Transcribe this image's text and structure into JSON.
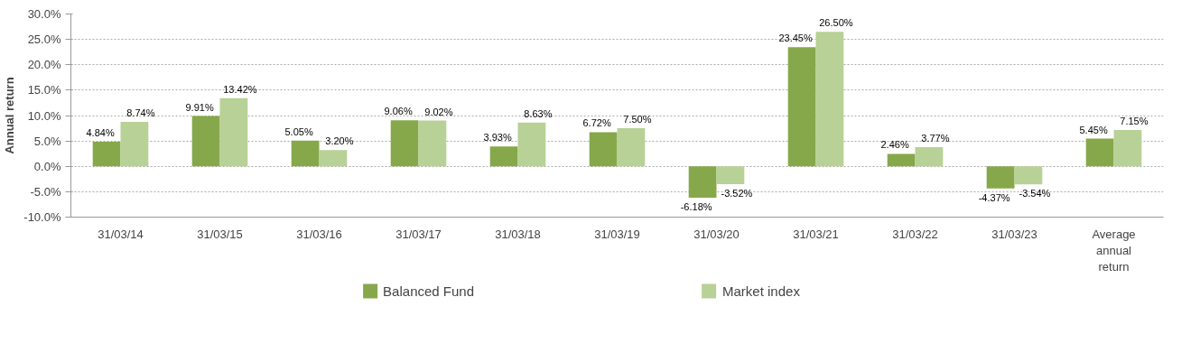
{
  "chart_data": {
    "type": "bar",
    "ylabel": "Annual return",
    "categories": [
      "31/03/14",
      "31/03/15",
      "31/03/16",
      "31/03/17",
      "31/03/18",
      "31/03/19",
      "31/03/20",
      "31/03/21",
      "31/03/22",
      "31/03/23",
      "Average\nannual\nreturn"
    ],
    "series": [
      {
        "name": "Balanced Fund",
        "color": "#86a84a",
        "values": [
          4.84,
          9.91,
          5.05,
          9.06,
          3.93,
          6.72,
          -6.18,
          23.45,
          2.46,
          -4.37,
          5.45
        ],
        "value_labels": [
          "4.84%",
          "9.91%",
          "5.05%",
          "9.06%",
          "3.93%",
          "6.72%",
          "-6.18%",
          "23.45%",
          "2.46%",
          "-4.37%",
          "5.45%"
        ]
      },
      {
        "name": "Market index",
        "color": "#b8d196",
        "values": [
          8.74,
          13.42,
          3.2,
          9.02,
          8.63,
          7.5,
          -3.52,
          26.5,
          3.77,
          -3.54,
          7.15
        ],
        "value_labels": [
          "8.74%",
          "13.42%",
          "3.20%",
          "9.02%",
          "8.63%",
          "7.50%",
          "-3.52%",
          "26.50%",
          "3.77%",
          "-3.54%",
          "7.15%"
        ]
      }
    ],
    "ylim": [
      -10,
      30
    ],
    "yticks": [
      {
        "value": -10,
        "label": "-10.0%"
      },
      {
        "value": -5,
        "label": "-5.0%"
      },
      {
        "value": 0,
        "label": "0.0%"
      },
      {
        "value": 5,
        "label": "5.0%"
      },
      {
        "value": 10,
        "label": "10.0%"
      },
      {
        "value": 15,
        "label": "15.0%"
      },
      {
        "value": 20,
        "label": "20.0%"
      },
      {
        "value": 25,
        "label": "25.0%"
      },
      {
        "value": 30,
        "label": "30.0%"
      }
    ],
    "grid": "y",
    "legend": "bottom"
  }
}
